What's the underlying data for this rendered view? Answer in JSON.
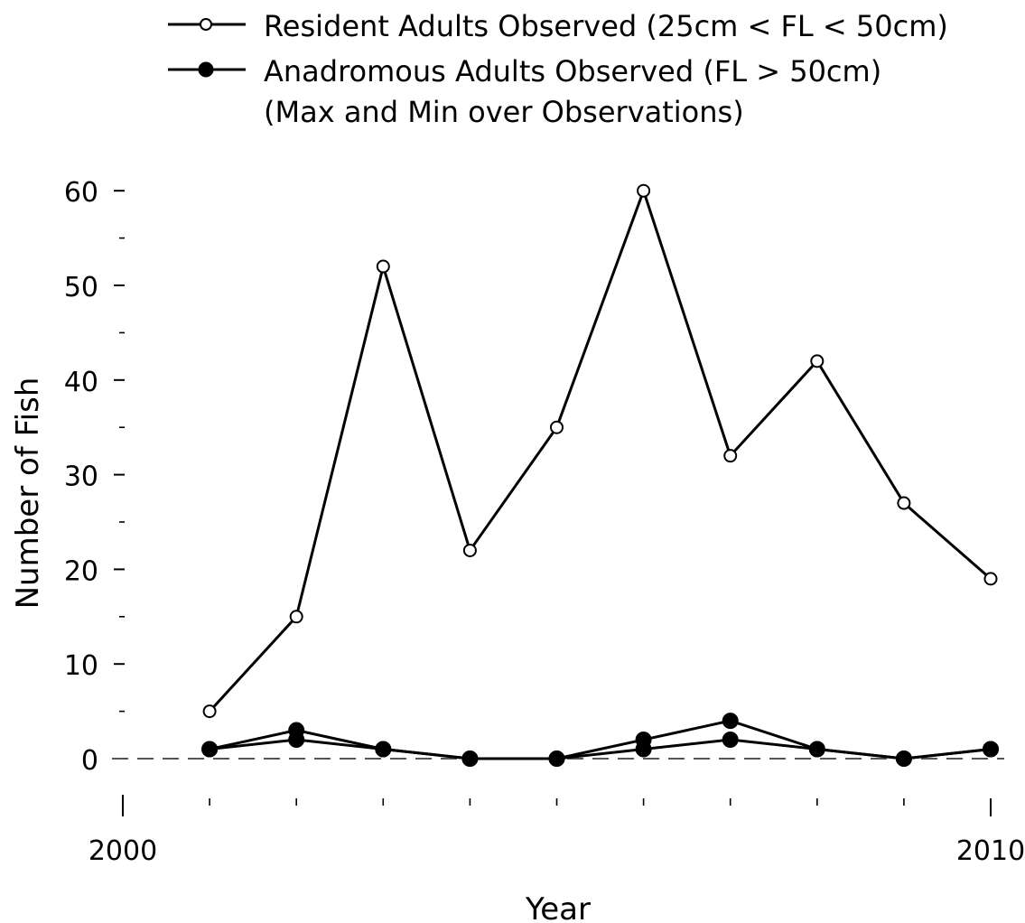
{
  "chart_data": {
    "type": "line",
    "xlabel": "Year",
    "ylabel": "Number of Fish",
    "xlim": [
      2000,
      2010
    ],
    "ylim": [
      -5,
      60
    ],
    "x_ticks": [
      2001,
      2002,
      2003,
      2004,
      2005,
      2006,
      2007,
      2008,
      2009,
      2010
    ],
    "x_tick_labels": [
      {
        "value": 2000,
        "label": "2000"
      },
      {
        "value": 2010,
        "label": "2010"
      }
    ],
    "y_ticks": [
      0,
      10,
      20,
      30,
      40,
      50,
      60
    ],
    "y_tick_labels": [
      "0",
      "10",
      "20",
      "30",
      "40",
      "50",
      "60"
    ],
    "y_minor_ticks": [
      5,
      15,
      25,
      35,
      45,
      55
    ],
    "reference_line": {
      "y": 0,
      "style": "dashed"
    },
    "grid": false,
    "legend_position": "top",
    "legend": [
      {
        "text": "Resident Adults Observed (25cm < FL < 50cm)",
        "marker": "open-circle"
      },
      {
        "text": "Anadromous Adults Observed (FL > 50cm)",
        "marker": "filled-circle"
      },
      {
        "text": "(Max and Min over Observations)",
        "marker": "none"
      }
    ],
    "series": [
      {
        "marker": "open-circle",
        "x": [
          2001,
          2002,
          2003,
          2004,
          2005,
          2006,
          2007,
          2008,
          2009,
          2010
        ],
        "values": [
          5,
          15,
          52,
          22,
          35,
          60,
          32,
          42,
          27,
          19
        ]
      },
      {
        "marker": "filled-circle",
        "x": [
          2001,
          2002,
          2003,
          2004,
          2005,
          2006,
          2007,
          2008,
          2009,
          2010
        ],
        "values": [
          1,
          3,
          1,
          0,
          0,
          2,
          4,
          1,
          0,
          1
        ]
      },
      {
        "marker": "filled-circle",
        "x": [
          2001,
          2002,
          2003,
          2004,
          2005,
          2006,
          2007,
          2008,
          2009,
          2010
        ],
        "values": [
          1,
          2,
          1,
          0,
          0,
          1,
          2,
          1,
          0,
          1
        ]
      }
    ]
  }
}
